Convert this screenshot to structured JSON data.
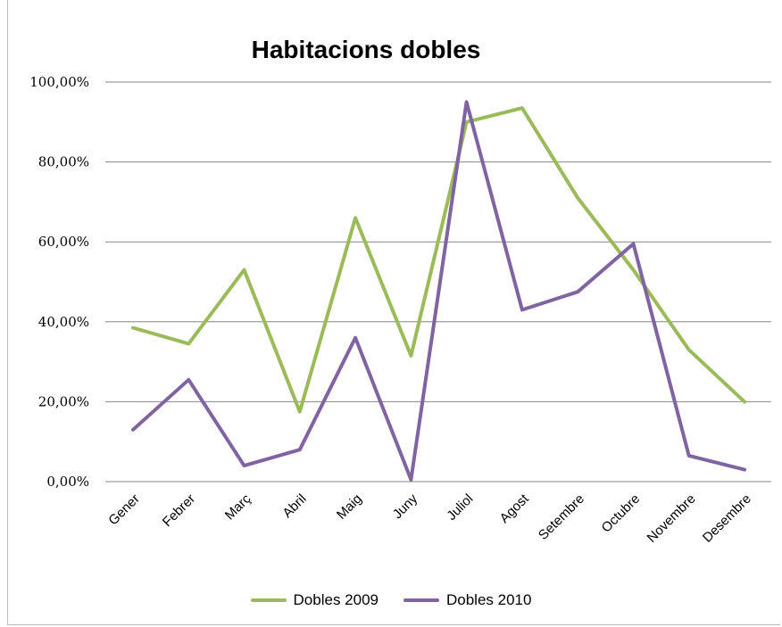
{
  "chart_data": {
    "type": "line",
    "title": "Habitacions dobles",
    "categories": [
      "Gener",
      "Febrer",
      "Març",
      "Abril",
      "Maig",
      "Juny",
      "Juliol",
      "Agost",
      "Setembre",
      "Octubre",
      "Novembre",
      "Desembre"
    ],
    "y_tick_labels": [
      "0,00%",
      "20,00%",
      "40,00%",
      "60,00%",
      "80,00%",
      "100,00%"
    ],
    "ylim": [
      0,
      100
    ],
    "grid": true,
    "legend_position": "bottom",
    "series": [
      {
        "name": "Dobles 2009",
        "color": "#9bbb59",
        "values": [
          38.5,
          34.5,
          53,
          17.5,
          66,
          31.5,
          90,
          93.5,
          71,
          53,
          33,
          20
        ]
      },
      {
        "name": "Dobles 2010",
        "color": "#8064a2",
        "values": [
          13,
          25.5,
          4,
          8,
          36,
          0.5,
          95,
          43,
          47.5,
          59.5,
          6.5,
          3
        ]
      }
    ]
  }
}
